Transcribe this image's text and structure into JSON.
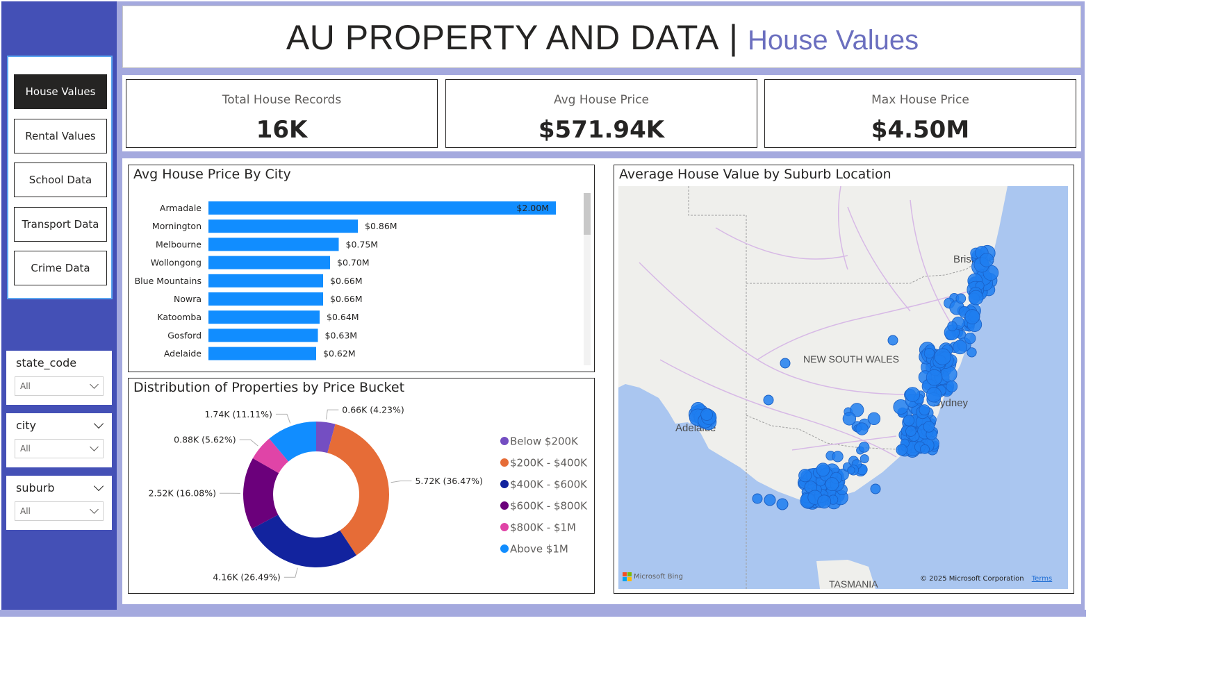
{
  "header": {
    "title_main": "AU PROPERTY AND DATA",
    "title_sep": "|",
    "title_sub": "House Values"
  },
  "nav": {
    "buttons": [
      {
        "label": "House Values",
        "active": true
      },
      {
        "label": "Rental Values",
        "active": false
      },
      {
        "label": "School Data",
        "active": false
      },
      {
        "label": "Transport Data",
        "active": false
      },
      {
        "label": "Crime Data",
        "active": false
      }
    ]
  },
  "slicers": [
    {
      "title": "state_code",
      "value": "All"
    },
    {
      "title": "city",
      "value": "All"
    },
    {
      "title": "suburb",
      "value": "All"
    }
  ],
  "kpis": [
    {
      "label": "Total House Records",
      "value": "16K"
    },
    {
      "label": "Avg House Price",
      "value": "$571.94K"
    },
    {
      "label": "Max House Price",
      "value": "$4.50M"
    }
  ],
  "chart_data": [
    {
      "type": "bar",
      "orientation": "horizontal",
      "title": "Avg House Price By City",
      "categories": [
        "Armadale",
        "Mornington",
        "Melbourne",
        "Wollongong",
        "Blue Mountains",
        "Nowra",
        "Katoomba",
        "Gosford",
        "Adelaide"
      ],
      "values": [
        2.0,
        0.86,
        0.75,
        0.7,
        0.66,
        0.66,
        0.64,
        0.63,
        0.62
      ],
      "value_labels": [
        "$2.00M",
        "$0.86M",
        "$0.75M",
        "$0.70M",
        "$0.66M",
        "$0.66M",
        "$0.64M",
        "$0.63M",
        "$0.62M"
      ],
      "unit": "$M",
      "xlim": [
        0,
        2.0
      ],
      "color": "#118dff",
      "grid": false
    },
    {
      "type": "pie",
      "variant": "donut",
      "title": "Distribution of Properties by Price Bucket",
      "categories": [
        "Below $200K",
        "$200K - $400K",
        "$400K - $600K",
        "$600K - $800K",
        "$800K - $1M",
        "Above $1M"
      ],
      "values": [
        4.23,
        36.47,
        26.49,
        16.08,
        5.62,
        11.11
      ],
      "counts": [
        "0.66K",
        "5.72K",
        "4.16K",
        "2.52K",
        "0.88K",
        "1.74K"
      ],
      "labels": [
        "0.66K (4.23%)",
        "5.72K (36.47%)",
        "4.16K (26.49%)",
        "2.52K (16.08%)",
        "0.88K (5.62%)",
        "1.74K (11.11%)"
      ],
      "colors": [
        "#744ec2",
        "#e66c37",
        "#12239e",
        "#6b007b",
        "#e044a7",
        "#118dff"
      ],
      "legend_position": "right"
    }
  ],
  "map": {
    "title": "Average House Value by Suburb Location",
    "place_labels": [
      "Brisbane",
      "NEW SOUTH WALES",
      "Sydney",
      "Adelaide",
      "TASMANIA"
    ],
    "marker_color": "#1f7ef0",
    "footer_brand": "Microsoft Bing",
    "copyright": "© 2025 Microsoft Corporation",
    "terms": "Terms"
  },
  "colors": {
    "nav_bg": "#4450b6",
    "frame_bg": "#a4a9de",
    "active_button": "#252423",
    "accent_subtitle": "#6b6fbf"
  }
}
